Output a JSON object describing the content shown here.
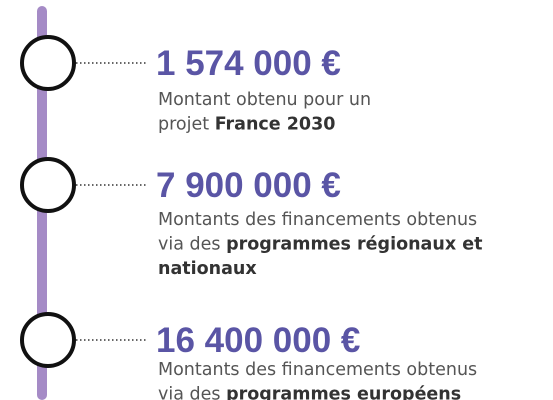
{
  "items": [
    {
      "amount": "1 574 000 €",
      "lines": [
        [
          {
            "text": "Montant obtenu pour un",
            "bold": false
          }
        ],
        [
          {
            "text": "projet ",
            "bold": false
          },
          {
            "text": "France 2030",
            "bold": true
          }
        ]
      ]
    },
    {
      "amount": "7 900 000 €",
      "lines": [
        [
          {
            "text": "Montants des financements obtenus",
            "bold": false
          }
        ],
        [
          {
            "text": "via des ",
            "bold": false
          },
          {
            "text": "programmes régionaux et",
            "bold": true
          }
        ],
        [
          {
            "text": "nationaux",
            "bold": true
          }
        ]
      ]
    },
    {
      "amount": "16 400 000 €",
      "lines": [
        [
          {
            "text": "Montants des financements obtenus",
            "bold": false
          }
        ],
        [
          {
            "text": "via des ",
            "bold": false
          },
          {
            "text": "programmes européens",
            "bold": true
          }
        ]
      ]
    }
  ]
}
